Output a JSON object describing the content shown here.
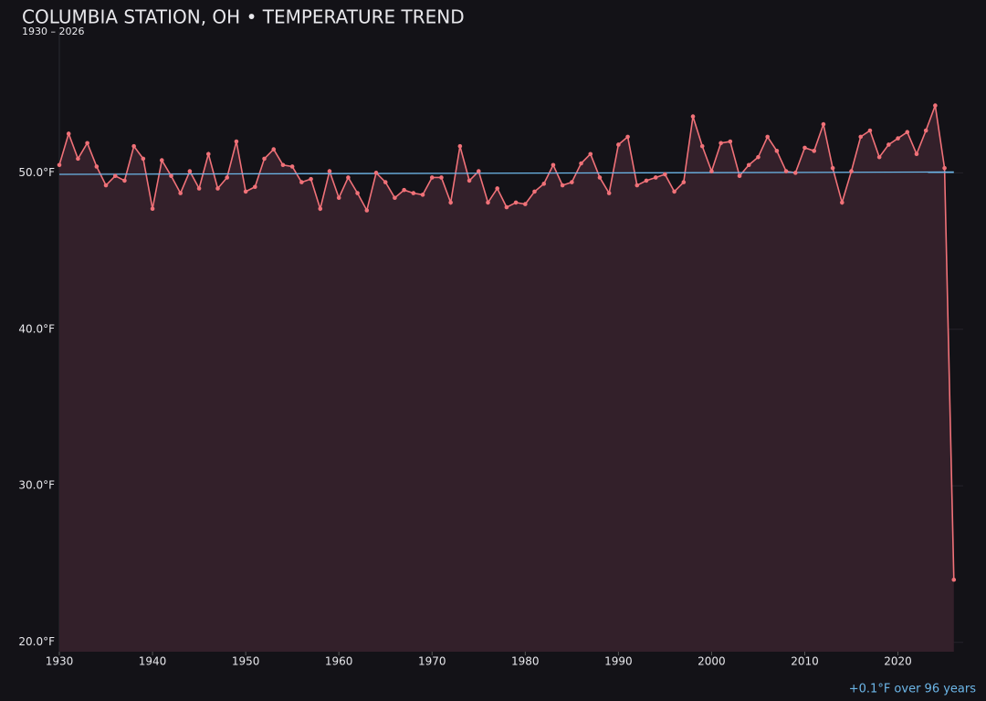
{
  "chart_data": {
    "type": "line",
    "title": "COLUMBIA STATION, OH • TEMPERATURE TREND",
    "subtitle": "1930 – 2026",
    "annotation": "+0.1°F over 96 years",
    "x": [
      1930,
      1931,
      1932,
      1933,
      1934,
      1935,
      1936,
      1937,
      1938,
      1939,
      1940,
      1941,
      1942,
      1943,
      1944,
      1945,
      1946,
      1947,
      1948,
      1949,
      1950,
      1951,
      1952,
      1953,
      1954,
      1955,
      1956,
      1957,
      1958,
      1959,
      1960,
      1961,
      1962,
      1963,
      1964,
      1965,
      1966,
      1967,
      1968,
      1969,
      1970,
      1971,
      1972,
      1973,
      1974,
      1975,
      1976,
      1977,
      1978,
      1979,
      1980,
      1981,
      1982,
      1983,
      1984,
      1985,
      1986,
      1987,
      1988,
      1989,
      1990,
      1991,
      1992,
      1993,
      1994,
      1995,
      1996,
      1997,
      1998,
      1999,
      2000,
      2001,
      2002,
      2003,
      2004,
      2005,
      2006,
      2007,
      2008,
      2009,
      2010,
      2011,
      2012,
      2013,
      2014,
      2015,
      2016,
      2017,
      2018,
      2019,
      2020,
      2021,
      2022,
      2023,
      2024,
      2025,
      2026
    ],
    "series": [
      {
        "color": "#f07178",
        "fill": "#33202a",
        "values": [
          50.5,
          52.5,
          50.9,
          51.9,
          50.4,
          49.2,
          49.8,
          49.5,
          51.7,
          50.9,
          47.7,
          50.8,
          49.8,
          48.7,
          50.1,
          49.0,
          51.2,
          49.0,
          49.7,
          52.0,
          48.8,
          49.1,
          50.9,
          51.5,
          50.5,
          50.4,
          49.4,
          49.6,
          47.7,
          50.1,
          48.4,
          49.7,
          48.7,
          47.6,
          50.0,
          49.4,
          48.4,
          48.9,
          48.7,
          48.6,
          49.7,
          49.7,
          48.1,
          51.7,
          49.5,
          50.1,
          48.1,
          49.0,
          47.8,
          48.1,
          48.0,
          48.8,
          49.3,
          50.5,
          49.2,
          49.4,
          50.6,
          51.2,
          49.7,
          48.7,
          51.8,
          52.3,
          49.2,
          49.5,
          49.7,
          49.9,
          48.8,
          49.4,
          53.6,
          51.7,
          50.1,
          51.9,
          52.0,
          49.8,
          50.5,
          51.0,
          52.3,
          51.4,
          50.1,
          50.0,
          51.6,
          51.4,
          53.1,
          50.3,
          48.1,
          50.1,
          52.3,
          52.7,
          51.0,
          51.8,
          52.2,
          52.6,
          51.2,
          52.7,
          54.3,
          50.3,
          24.0
        ]
      }
    ],
    "trend": {
      "color": "#6cb6e8",
      "x": [
        1930,
        2026
      ],
      "values": [
        49.9,
        50.05
      ]
    },
    "xlim": [
      1930,
      2027
    ],
    "ylim": [
      19.4,
      59
    ],
    "xticks": [
      1930,
      1940,
      1950,
      1960,
      1970,
      1980,
      1990,
      2000,
      2010,
      2020
    ],
    "yticks": [
      {
        "value": 20,
        "label": "20.0°F"
      },
      {
        "value": 30,
        "label": "30.0°F"
      },
      {
        "value": 40,
        "label": "40.0°F"
      },
      {
        "value": 50,
        "label": "50.0°F"
      }
    ],
    "grid": true
  }
}
